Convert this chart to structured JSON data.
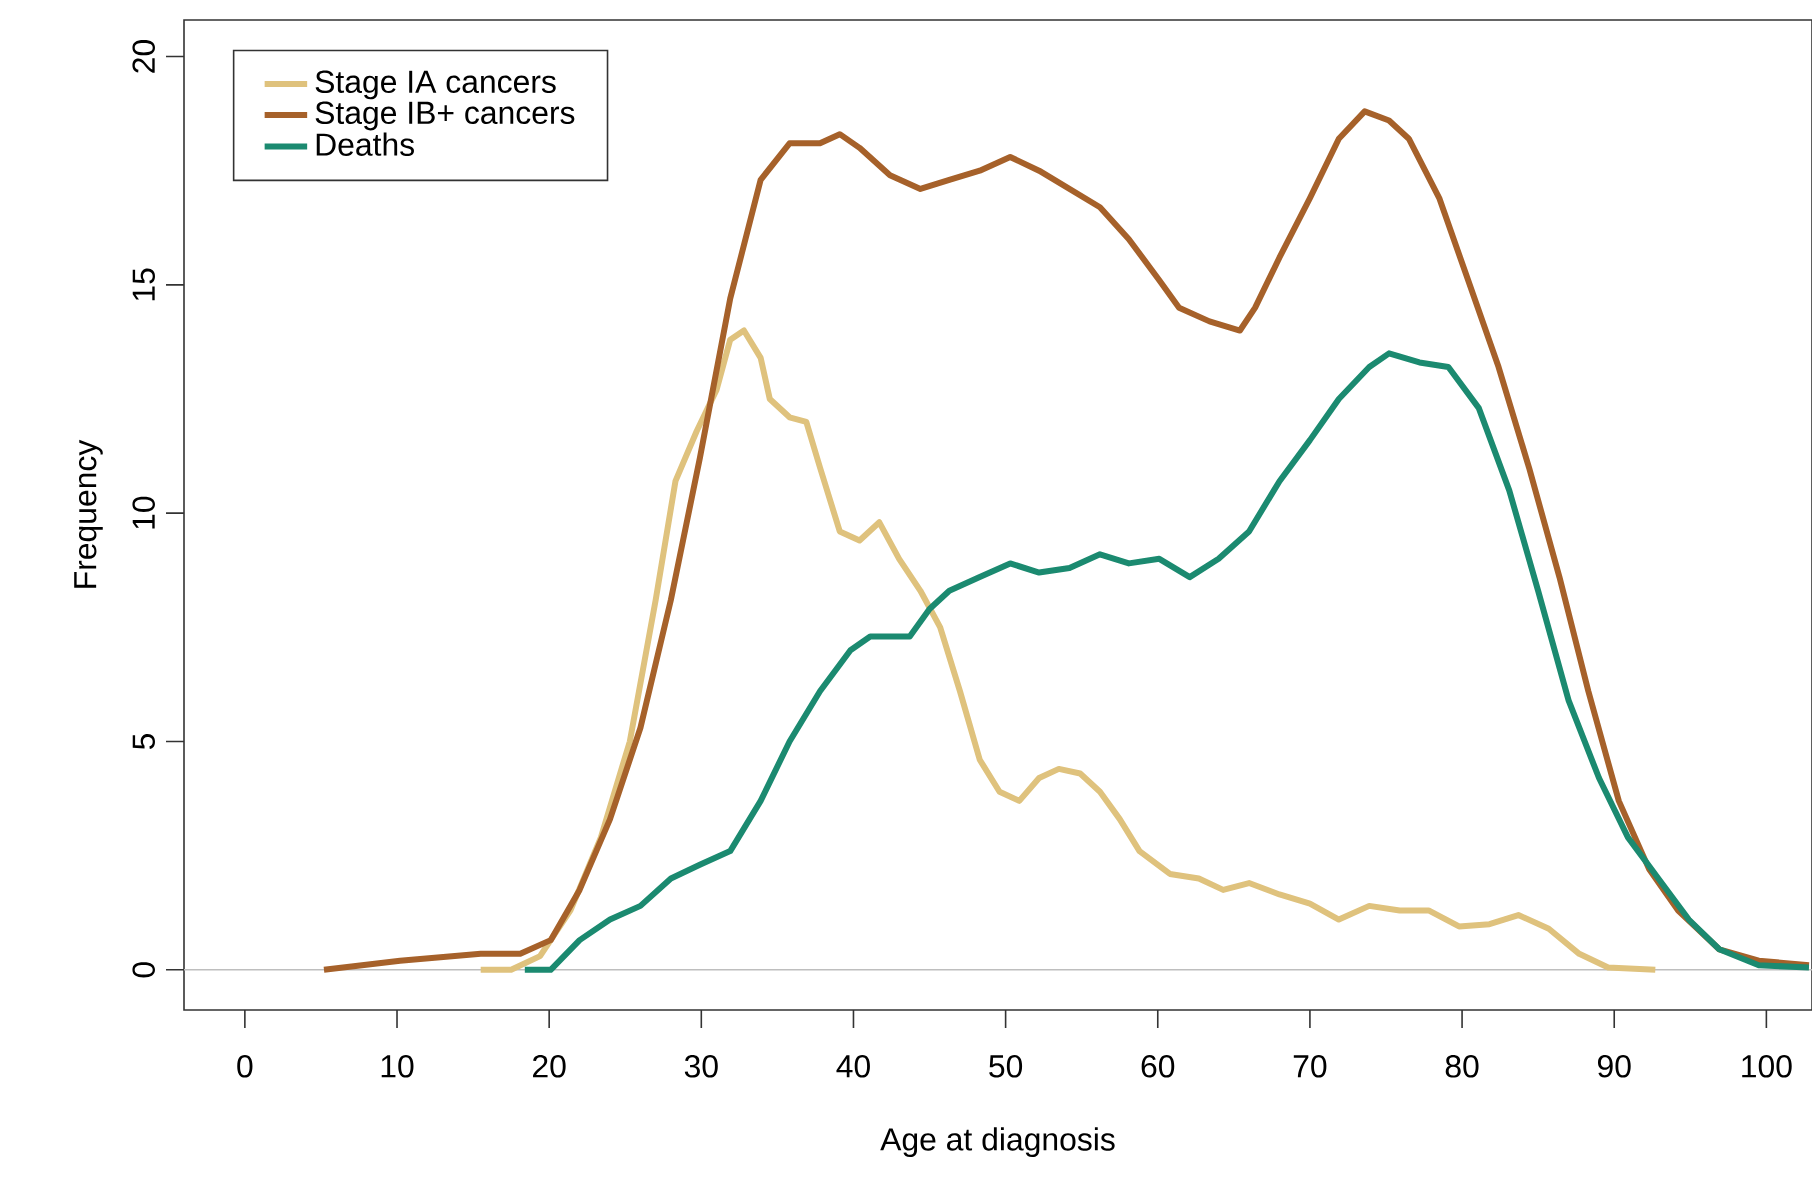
{
  "chart_data": {
    "type": "line",
    "xlabel": "Age at diagnosis",
    "ylabel": "Frequency",
    "xlim": [
      -4,
      103
    ],
    "ylim": [
      -0.88,
      20.8
    ],
    "xticks": [
      0,
      10,
      20,
      30,
      40,
      50,
      60,
      70,
      80,
      90,
      100
    ],
    "yticks": [
      0,
      5,
      10,
      15,
      20
    ],
    "legend": "top left",
    "grid": false,
    "ref_lines": [
      {
        "axis": "y",
        "value": 0,
        "color": "#bebebe"
      }
    ],
    "series": [
      {
        "name": "Stage IA cancers",
        "color": "#dfc27d",
        "x": [
          15.5,
          17.5,
          19.4,
          21.4,
          23.4,
          25.3,
          27,
          28.3,
          29.7,
          31,
          31.9,
          32.8,
          33.9,
          34.5,
          35.8,
          36.9,
          37.8,
          39.1,
          40.4,
          41.7,
          43,
          44.4,
          45.7,
          47,
          48.3,
          49.6,
          50.9,
          52.2,
          53.5,
          54.9,
          56.2,
          57.5,
          58.8,
          60.8,
          62.7,
          64.3,
          66,
          68,
          70,
          71.9,
          73.9,
          75.9,
          77.8,
          79.8,
          81.8,
          83.7,
          85.7,
          87.7,
          89.6,
          92.7
        ],
        "values": [
          0,
          0,
          0.3,
          1.3,
          2.9,
          5,
          8.1,
          10.7,
          11.8,
          12.7,
          13.8,
          14,
          13.4,
          12.5,
          12.1,
          12,
          11,
          9.6,
          9.4,
          9.8,
          9,
          8.3,
          7.5,
          6.1,
          4.6,
          3.9,
          3.7,
          4.2,
          4.4,
          4.3,
          3.9,
          3.3,
          2.6,
          2.1,
          2.0,
          1.75,
          1.9,
          1.65,
          1.45,
          1.1,
          1.4,
          1.3,
          1.3,
          0.95,
          1.0,
          1.2,
          0.9,
          0.35,
          0.05,
          0
        ]
      },
      {
        "name": "Stage IB+ cancers",
        "color": "#a6612a",
        "x": [
          5.2,
          10.2,
          15.5,
          18.1,
          20.1,
          22,
          24,
          26,
          28,
          29.9,
          31.9,
          33.9,
          35.8,
          37.8,
          39.1,
          40.4,
          42.4,
          44.4,
          46.3,
          48.3,
          50.3,
          52.2,
          54.2,
          56.2,
          58.1,
          60.1,
          61.4,
          63.4,
          65.4,
          66.4,
          68,
          70,
          71.9,
          73.6,
          75.2,
          76.5,
          78.5,
          80.4,
          82.4,
          84.4,
          86.4,
          88.3,
          90.3,
          92.3,
          94.2,
          96.9,
          99.5,
          102.8
        ],
        "values": [
          0,
          0.2,
          0.35,
          0.35,
          0.65,
          1.75,
          3.3,
          5.3,
          8.1,
          11.2,
          14.7,
          17.3,
          18.1,
          18.1,
          18.3,
          18.0,
          17.4,
          17.1,
          17.3,
          17.5,
          17.8,
          17.5,
          17.1,
          16.7,
          16,
          15.1,
          14.5,
          14.2,
          14.0,
          14.5,
          15.6,
          16.9,
          18.2,
          18.8,
          18.6,
          18.2,
          16.9,
          15.1,
          13.2,
          11,
          8.6,
          6.1,
          3.7,
          2.2,
          1.3,
          0.45,
          0.2,
          0.1
        ]
      },
      {
        "name": "Deaths",
        "color": "#1b8a70",
        "x": [
          18.4,
          20.1,
          22,
          24,
          26,
          28,
          29.9,
          31.9,
          33.9,
          35.8,
          37.8,
          39.8,
          41.1,
          42.4,
          43.7,
          45,
          46.3,
          48.3,
          50.3,
          52.2,
          54.2,
          56.2,
          58.1,
          60.1,
          62.1,
          64,
          66,
          68,
          70,
          71.9,
          73.9,
          75.2,
          77.2,
          79.1,
          81.1,
          83.1,
          85,
          87,
          89,
          90.9,
          92.9,
          94.9,
          96.9,
          99.5,
          102.8
        ],
        "values": [
          0,
          0,
          0.65,
          1.1,
          1.4,
          2.0,
          2.3,
          2.6,
          3.7,
          5,
          6.1,
          7.0,
          7.3,
          7.3,
          7.3,
          7.9,
          8.3,
          8.6,
          8.9,
          8.7,
          8.8,
          9.1,
          8.9,
          9.0,
          8.6,
          9.0,
          9.6,
          10.7,
          11.6,
          12.5,
          13.2,
          13.5,
          13.3,
          13.2,
          12.3,
          10.5,
          8.3,
          5.9,
          4.2,
          2.9,
          2.0,
          1.1,
          0.45,
          0.1,
          0.05
        ]
      }
    ]
  }
}
